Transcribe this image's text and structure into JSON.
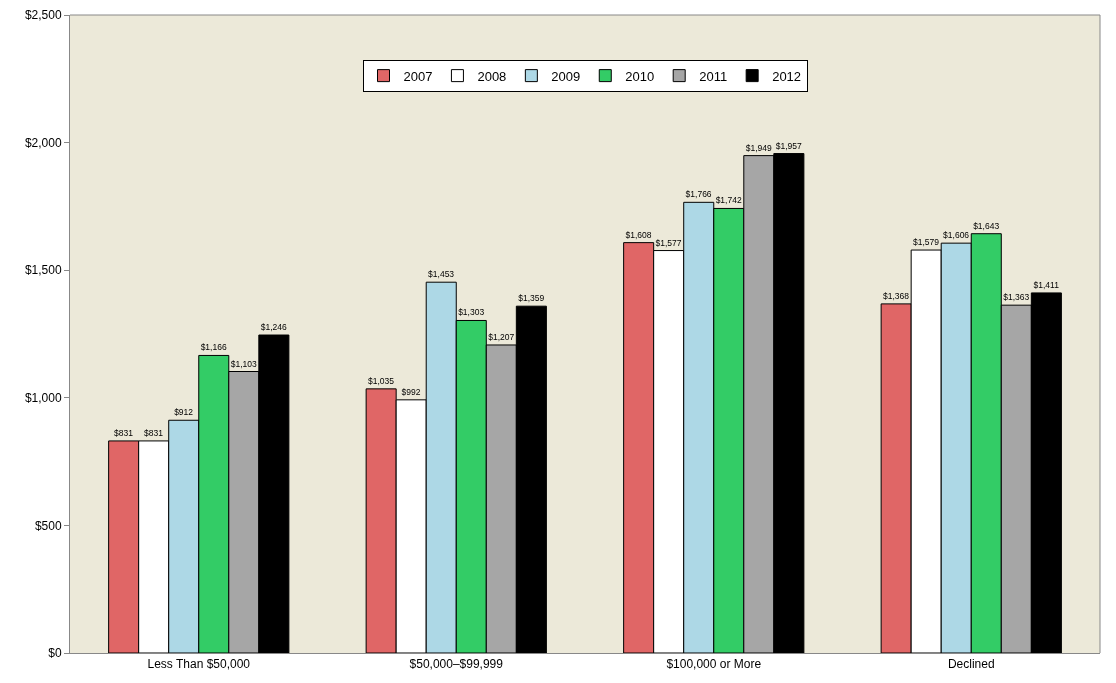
{
  "chart_data": {
    "type": "bar",
    "categories": [
      "Less Than $50,000",
      "$50,000–$99,999",
      "$100,000 or More",
      "Declined"
    ],
    "series": [
      {
        "name": "2007",
        "color": "#e06666",
        "values": [
          831,
          1035,
          1608,
          1368
        ],
        "value_labels": [
          "$831",
          "$1,035",
          "$1,608",
          "$1,368"
        ]
      },
      {
        "name": "2008",
        "color": "#ffffff",
        "values": [
          831,
          992,
          1577,
          1579
        ],
        "value_labels": [
          "$831",
          "$992",
          "$1,577",
          "$1,579"
        ]
      },
      {
        "name": "2009",
        "color": "#add8e6",
        "values": [
          912,
          1453,
          1766,
          1606
        ],
        "value_labels": [
          "$912",
          "$1,453",
          "$1,766",
          "$1,606"
        ]
      },
      {
        "name": "2010",
        "color": "#33cc66",
        "values": [
          1166,
          1303,
          1742,
          1643
        ],
        "value_labels": [
          "$1,166",
          "$1,303",
          "$1,742",
          "$1,643"
        ]
      },
      {
        "name": "2011",
        "color": "#a6a6a6",
        "values": [
          1103,
          1207,
          1949,
          1363
        ],
        "value_labels": [
          "$1,103",
          "$1,207",
          "$1,949",
          "$1,363"
        ]
      },
      {
        "name": "2012",
        "color": "#000000",
        "values": [
          1246,
          1359,
          1957,
          1411
        ],
        "value_labels": [
          "$1,246",
          "$1,359",
          "$1,957",
          "$1,411"
        ]
      }
    ],
    "ylim": [
      0,
      2500
    ],
    "yticks": [
      {
        "value": 0,
        "label": "$0"
      },
      {
        "value": 500,
        "label": "$500"
      },
      {
        "value": 1000,
        "label": "$1,000"
      },
      {
        "value": 1500,
        "label": "$1,500"
      },
      {
        "value": 2000,
        "label": "$2,000"
      },
      {
        "value": 2500,
        "label": "$2,500"
      }
    ],
    "grid": false,
    "legend": "top"
  }
}
